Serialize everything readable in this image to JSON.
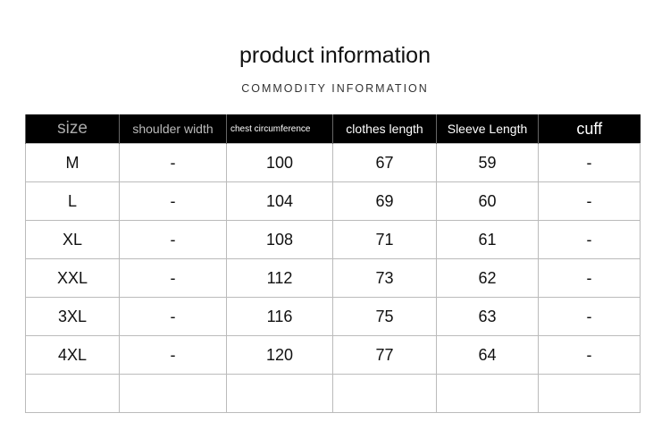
{
  "title": "product information",
  "subtitle": "COMMODITY INFORMATION",
  "headers": [
    "size",
    "shoulder width",
    "chest circumference",
    "clothes length",
    "Sleeve Length",
    "cuff"
  ],
  "rows": [
    [
      "M",
      "-",
      "100",
      "67",
      "59",
      "-"
    ],
    [
      "L",
      "-",
      "104",
      "69",
      "60",
      "-"
    ],
    [
      "XL",
      "-",
      "108",
      "71",
      "61",
      "-"
    ],
    [
      "XXL",
      "-",
      "112",
      "73",
      "62",
      "-"
    ],
    [
      "3XL",
      "-",
      "116",
      "75",
      "63",
      "-"
    ],
    [
      "4XL",
      "-",
      "120",
      "77",
      "64",
      "-"
    ],
    [
      "",
      "",
      "",
      "",
      "",
      ""
    ]
  ]
}
